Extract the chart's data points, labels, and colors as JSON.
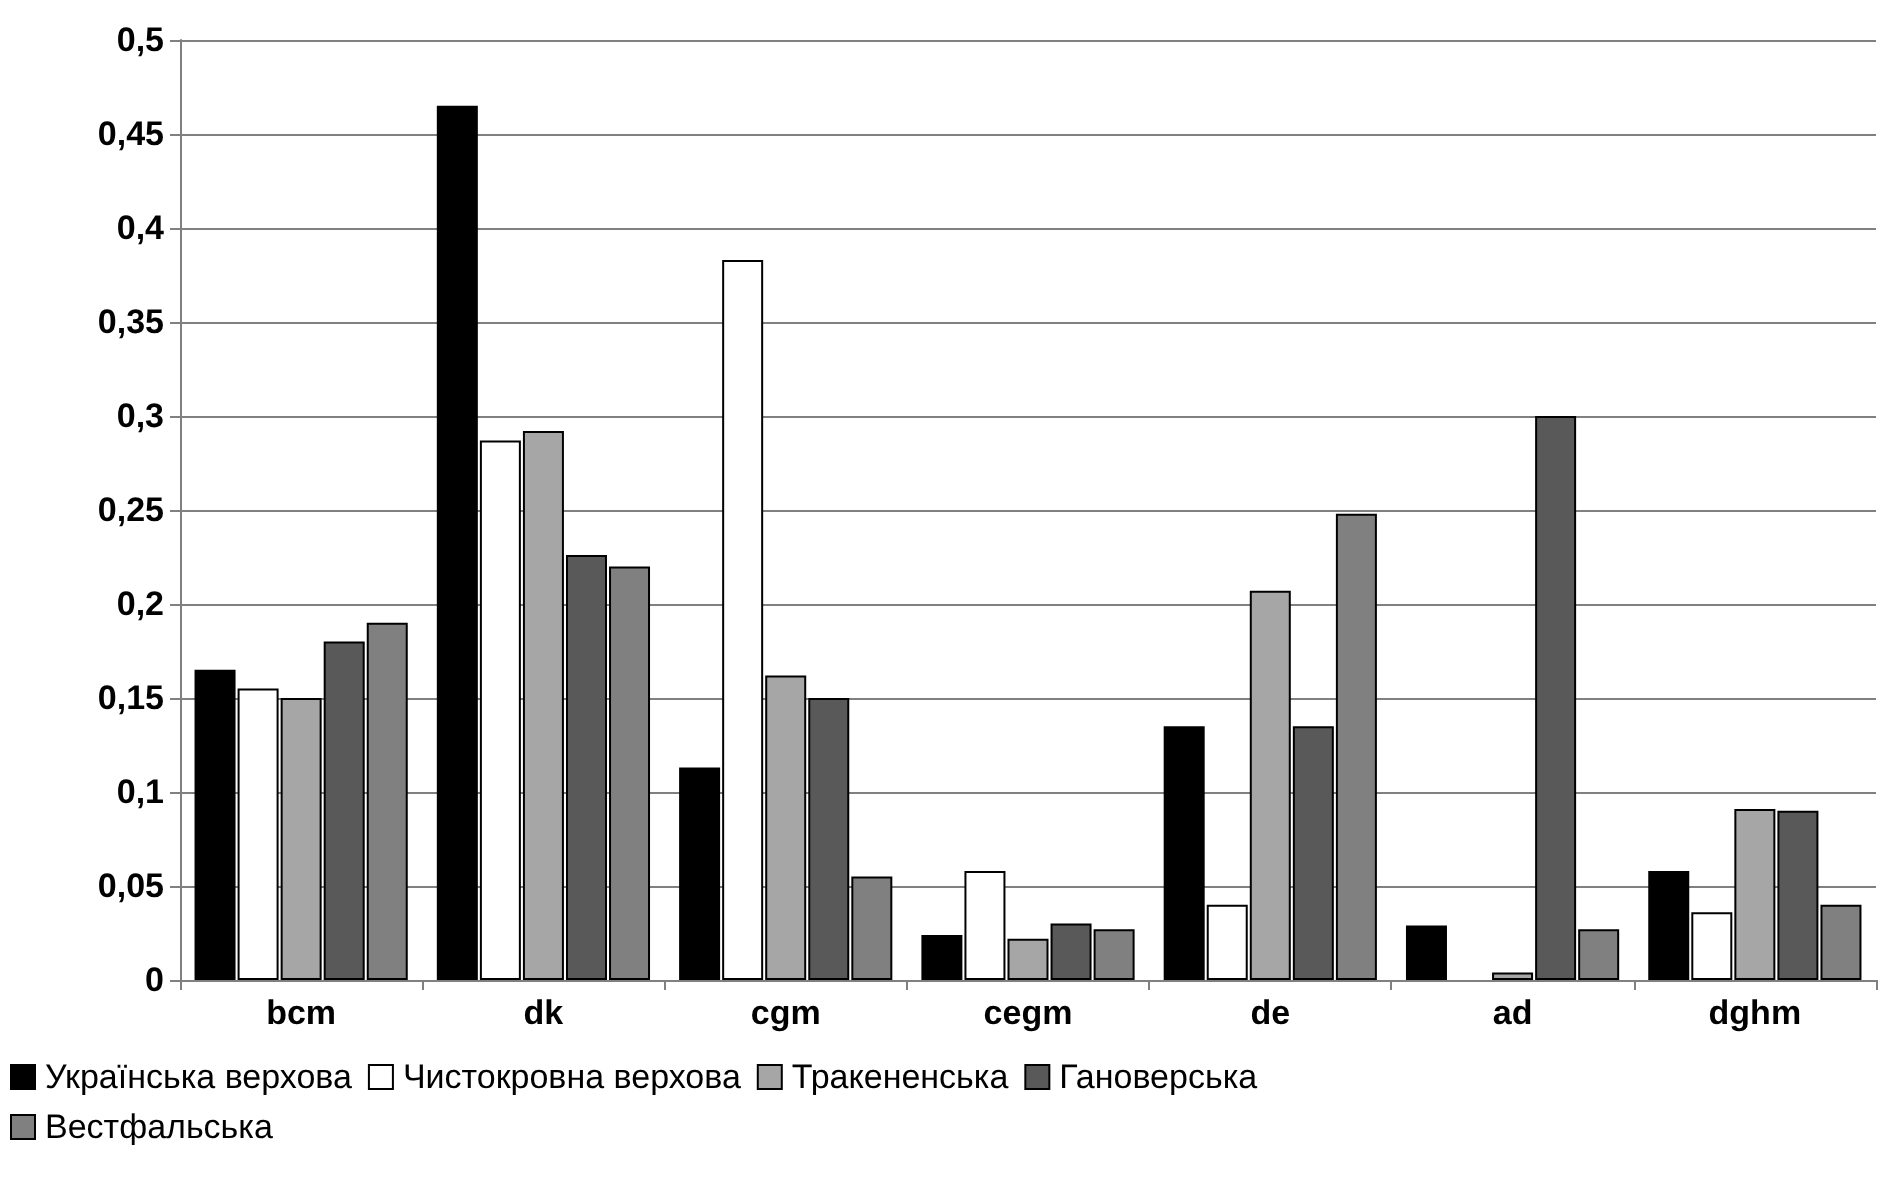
{
  "chart_data": {
    "type": "bar",
    "categories": [
      "bcm",
      "dk",
      "cgm",
      "cegm",
      "de",
      "ad",
      "dghm"
    ],
    "series": [
      {
        "name": "Українська верхова",
        "color": "#000000",
        "values": [
          0.165,
          0.465,
          0.113,
          0.024,
          0.135,
          0.029,
          0.058
        ]
      },
      {
        "name": "Чистокровна верхова",
        "color": "#ffffff",
        "values": [
          0.155,
          0.287,
          0.383,
          0.058,
          0.04,
          null,
          0.036
        ]
      },
      {
        "name": "Тракененська",
        "color": "#a6a6a6",
        "values": [
          0.15,
          0.292,
          0.162,
          0.022,
          0.207,
          0.004,
          0.091
        ]
      },
      {
        "name": "Гановерська",
        "color": "#595959",
        "values": [
          0.18,
          0.226,
          0.15,
          0.03,
          0.135,
          0.3,
          0.09
        ]
      },
      {
        "name": "Вестфальська",
        "color": "#808080",
        "values": [
          0.19,
          0.22,
          0.055,
          0.027,
          0.248,
          0.027,
          0.04
        ]
      }
    ],
    "ylim": [
      0,
      0.5
    ],
    "yticks": [
      {
        "value": 0,
        "label": "0"
      },
      {
        "value": 0.05,
        "label": "0,05"
      },
      {
        "value": 0.1,
        "label": "0,1"
      },
      {
        "value": 0.15,
        "label": "0,15"
      },
      {
        "value": 0.2,
        "label": "0,2"
      },
      {
        "value": 0.25,
        "label": "0,25"
      },
      {
        "value": 0.3,
        "label": "0,3"
      },
      {
        "value": 0.35,
        "label": "0,35"
      },
      {
        "value": 0.4,
        "label": "0,4"
      },
      {
        "value": 0.45,
        "label": "0,45"
      },
      {
        "value": 0.5,
        "label": "0,5"
      }
    ],
    "grid": "y",
    "legend": "bottom"
  }
}
